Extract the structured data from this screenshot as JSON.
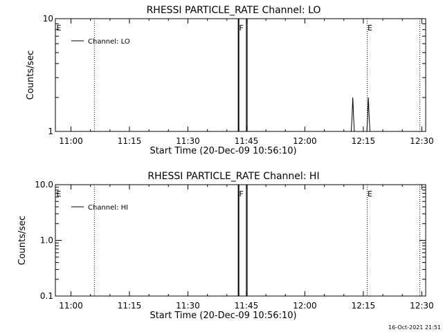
{
  "footer": {
    "timestamp": "16-Oct-2021 21:51"
  },
  "colors": {
    "background": "#ffffff",
    "foreground": "#000000"
  },
  "chart_data": [
    {
      "type": "line",
      "title": "RHESSI PARTICLE_RATE Channel: LO",
      "xlabel": "Start Time (20-Dec-09 10:56:10)",
      "ylabel": "Counts/sec",
      "x_unit": "minutes after 11:00 on 20-Dec-09",
      "xlim": [
        -4.0,
        91.0
      ],
      "ylim": [
        1,
        10
      ],
      "yscale": "log",
      "x_ticks": [
        {
          "x": 0,
          "label": "11:00"
        },
        {
          "x": 15,
          "label": "11:15"
        },
        {
          "x": 30,
          "label": "11:30"
        },
        {
          "x": 45,
          "label": "11:45"
        },
        {
          "x": 60,
          "label": "12:00"
        },
        {
          "x": 75,
          "label": "12:15"
        },
        {
          "x": 90,
          "label": "12:30"
        }
      ],
      "y_ticks": [
        {
          "y": 1,
          "label": "1"
        },
        {
          "y": 10,
          "label": "10"
        }
      ],
      "legend": {
        "position": "top-left",
        "entries": [
          "Channel: LO"
        ]
      },
      "grid": false,
      "series": [
        {
          "name": "Channel: LO",
          "points": [
            [
              42.9,
              1
            ],
            [
              42.9,
              10
            ],
            [
              43.1,
              10
            ],
            [
              43.1,
              1
            ],
            [
              45.0,
              1
            ],
            [
              45.0,
              10
            ],
            [
              45.2,
              10
            ],
            [
              45.2,
              1
            ],
            [
              71.9,
              1
            ],
            [
              72.1,
              1.35
            ],
            [
              72.3,
              2.0
            ],
            [
              72.5,
              1.35
            ],
            [
              72.7,
              1
            ],
            [
              75.9,
              1
            ],
            [
              76.1,
              1.35
            ],
            [
              76.3,
              2.0
            ],
            [
              76.5,
              1.35
            ],
            [
              76.7,
              1
            ]
          ]
        }
      ],
      "event_markers": [
        {
          "x": 6.0,
          "label": "",
          "style": "dotted"
        },
        {
          "x": 43.0,
          "label": "F",
          "style": "solid"
        },
        {
          "x": 76.0,
          "label": "E",
          "style": "dotted"
        },
        {
          "x": 89.5,
          "label": "",
          "style": "dotted"
        }
      ],
      "edge_labels": [
        "E"
      ]
    },
    {
      "type": "line",
      "title": "RHESSI PARTICLE_RATE Channel: HI",
      "xlabel": "Start Time (20-Dec-09 10:56:10)",
      "ylabel": "Counts/sec",
      "x_unit": "minutes after 11:00 on 20-Dec-09",
      "xlim": [
        -4.0,
        91.0
      ],
      "ylim": [
        0.1,
        10
      ],
      "yscale": "log",
      "x_ticks": [
        {
          "x": 0,
          "label": "11:00"
        },
        {
          "x": 15,
          "label": "11:15"
        },
        {
          "x": 30,
          "label": "11:30"
        },
        {
          "x": 45,
          "label": "11:45"
        },
        {
          "x": 60,
          "label": "12:00"
        },
        {
          "x": 75,
          "label": "12:15"
        },
        {
          "x": 90,
          "label": "12:30"
        }
      ],
      "y_ticks": [
        {
          "y": 0.1,
          "label": "0.1"
        },
        {
          "y": 1.0,
          "label": "1.0"
        },
        {
          "y": 10.0,
          "label": "10.0"
        }
      ],
      "legend": {
        "position": "top-left",
        "entries": [
          "Channel: HI"
        ]
      },
      "grid": false,
      "series": [
        {
          "name": "Channel: HI",
          "points": [
            [
              42.9,
              0.1
            ],
            [
              42.9,
              10
            ],
            [
              43.1,
              10
            ],
            [
              43.1,
              0.1
            ],
            [
              45.0,
              0.1
            ],
            [
              45.0,
              10
            ],
            [
              45.2,
              10
            ],
            [
              45.2,
              0.1
            ]
          ]
        }
      ],
      "event_markers": [
        {
          "x": 6.0,
          "label": "",
          "style": "dotted"
        },
        {
          "x": 43.0,
          "label": "F",
          "style": "solid"
        },
        {
          "x": 76.0,
          "label": "E",
          "style": "dotted"
        },
        {
          "x": 89.5,
          "label": "",
          "style": "dotted"
        }
      ],
      "edge_labels": [
        "E"
      ]
    }
  ]
}
